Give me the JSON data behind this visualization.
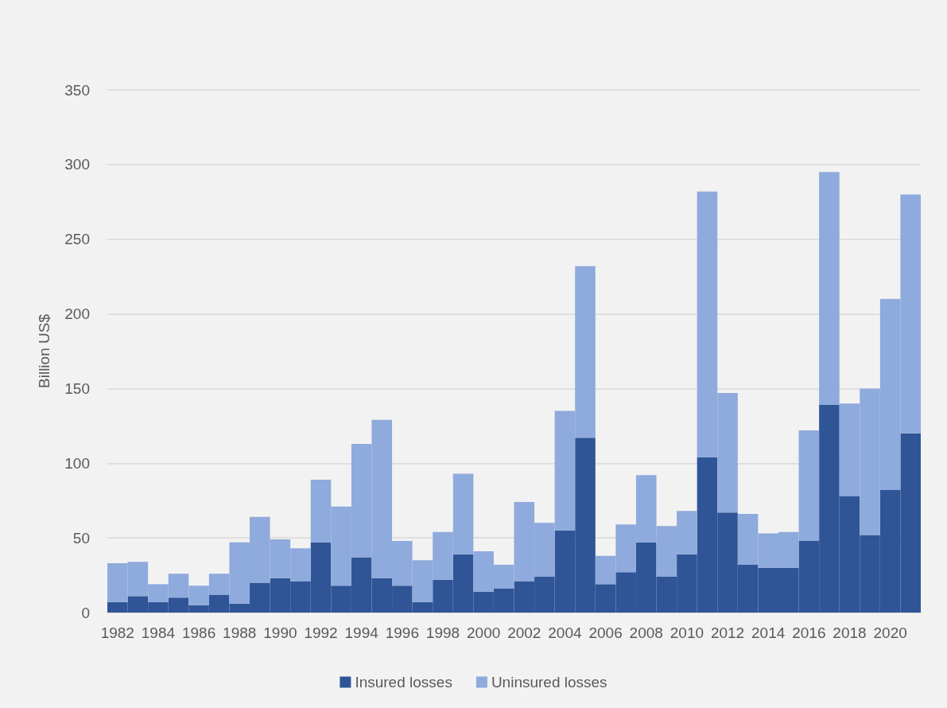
{
  "chart_data": {
    "type": "bar",
    "stacked": true,
    "ylabel": "Billion US$",
    "categories": [
      "1982",
      null,
      "1984",
      null,
      "1986",
      null,
      "1988",
      null,
      "1990",
      null,
      "1992",
      null,
      "1994",
      null,
      "1996",
      null,
      "1998",
      null,
      "2000",
      null,
      "2002",
      null,
      "2004",
      null,
      "2006",
      null,
      "2008",
      null,
      "2010",
      null,
      "2012",
      null,
      "2014",
      null,
      "2016",
      null,
      "2018",
      null,
      "2020",
      null
    ],
    "series": [
      {
        "name": "Insured losses",
        "color": "#2f5597",
        "values": [
          7,
          11,
          7,
          10,
          5,
          12,
          6,
          20,
          23,
          21,
          47,
          18,
          37,
          23,
          18,
          7,
          22,
          39,
          14,
          16,
          21,
          24,
          55,
          117,
          19,
          27,
          47,
          24,
          39,
          104,
          67,
          32,
          30,
          30,
          48,
          139,
          78,
          52,
          82,
          120
        ]
      },
      {
        "name": "Uninsured losses",
        "color": "#8faadc",
        "values": [
          26,
          23,
          12,
          16,
          13,
          14,
          41,
          44,
          26,
          22,
          42,
          53,
          76,
          106,
          30,
          28,
          32,
          54,
          27,
          16,
          53,
          36,
          80,
          115,
          19,
          32,
          45,
          34,
          29,
          178,
          80,
          34,
          23,
          24,
          74,
          156,
          62,
          98,
          128,
          160
        ]
      }
    ],
    "ylim": [
      0,
      350
    ],
    "yticks": [
      0,
      50,
      100,
      150,
      200,
      250,
      300,
      350
    ],
    "grid": "y",
    "legend": "bottom"
  }
}
